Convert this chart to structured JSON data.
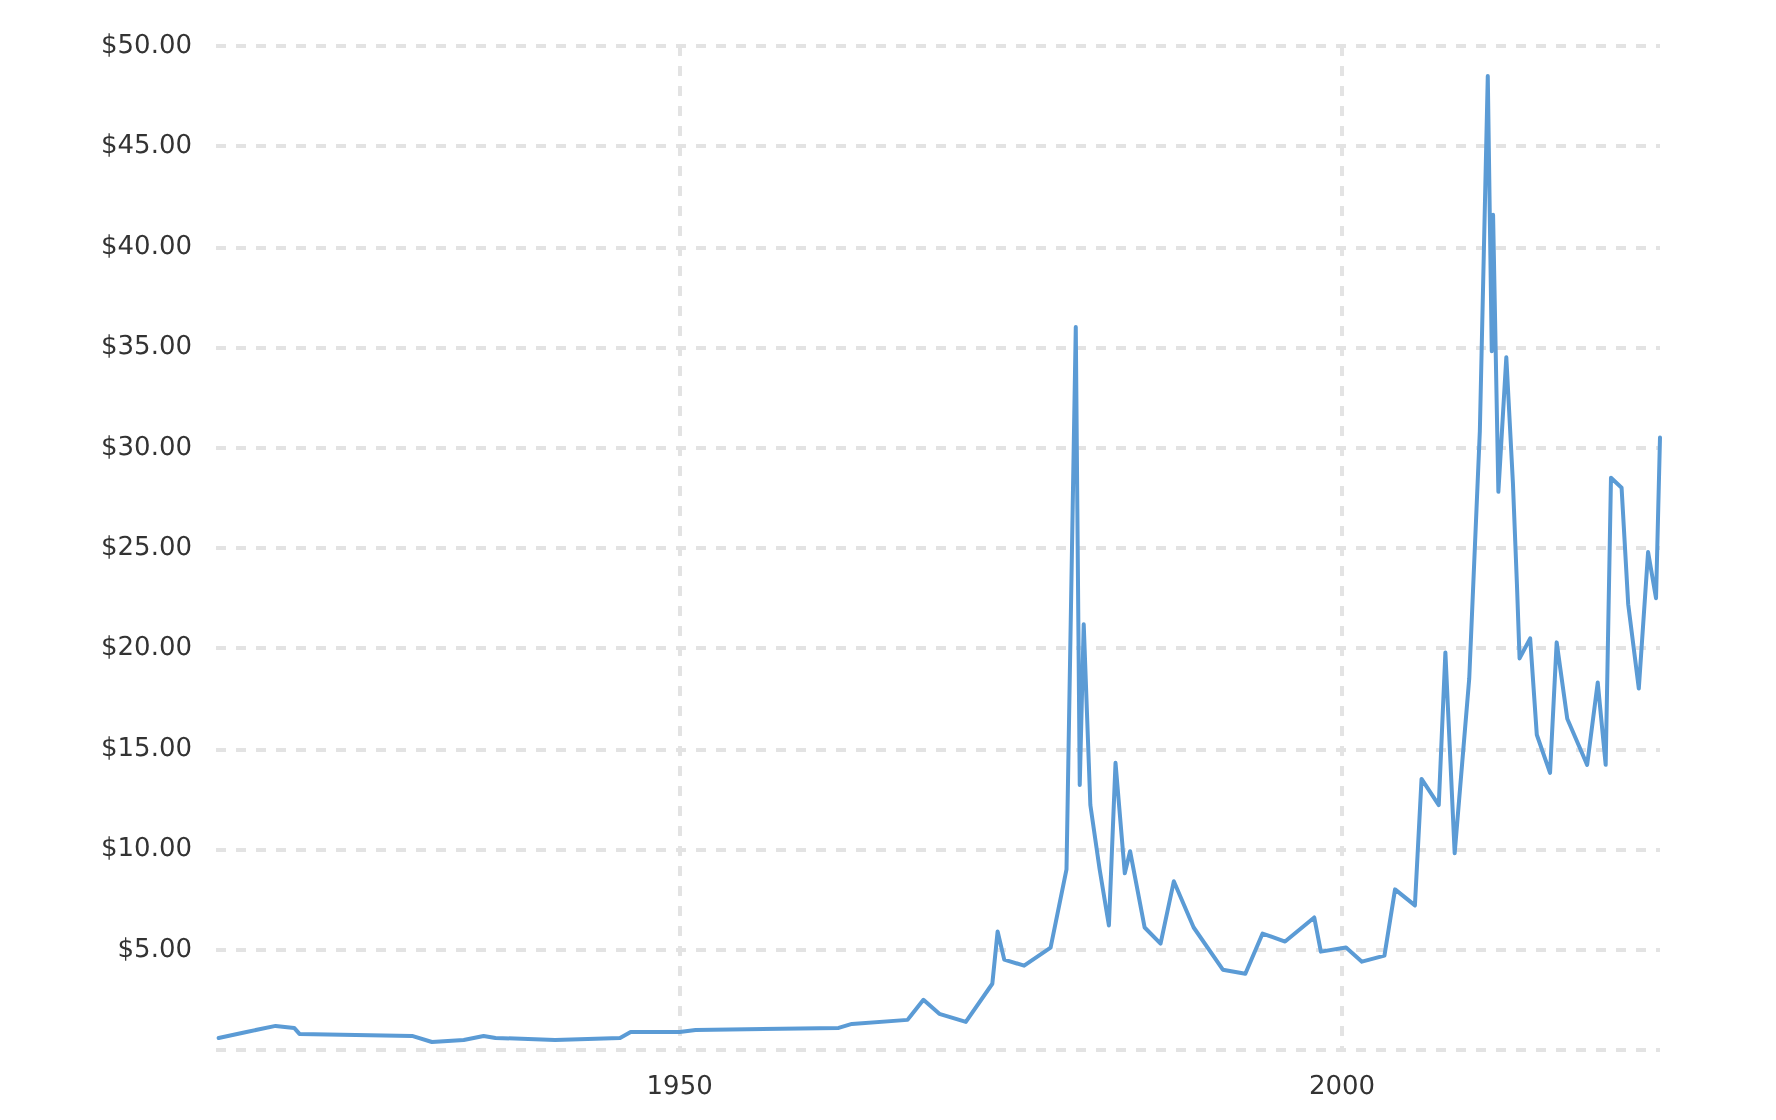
{
  "chart_data": {
    "type": "line",
    "x": [
      1915.2,
      1917.3,
      1919.5,
      1920.9,
      1921.3,
      1929.8,
      1931.3,
      1933.7,
      1935.2,
      1936.1,
      1940.6,
      1945.5,
      1946.3,
      1950,
      1951.2,
      1962,
      1963,
      1967.2,
      1968.4,
      1969.6,
      1971.6,
      1973.6,
      1974,
      1974.5,
      1976,
      1978,
      1979.2,
      1979.9,
      1980.2,
      1980.5,
      1981,
      1981.7,
      1982.4,
      1982.9,
      1983.6,
      1984,
      1985.1,
      1986.3,
      1987.3,
      1988.8,
      1991,
      1992.7,
      1994,
      1995.7,
      1997.9,
      1998.4,
      2000.3,
      2001.5,
      2003.2,
      2004,
      2005.5,
      2006,
      2007.3,
      2007.8,
      2008.5,
      2009.6,
      2010.4,
      2011,
      2011.3,
      2011.4,
      2011.8,
      2012.4,
      2012.9,
      2013.2,
      2013.4,
      2014.2,
      2014.7,
      2015.7,
      2016.2,
      2017,
      2018.5,
      2019.3,
      2019.9,
      2020.3,
      2021.1,
      2021.6,
      2022.4,
      2023.1,
      2023.7,
      2024
    ],
    "series": [
      {
        "color": "#5b9bd5",
        "values": [
          0.6,
          0.9,
          1.2,
          1.1,
          0.8,
          0.7,
          0.4,
          0.5,
          0.7,
          0.6,
          0.5,
          0.6,
          0.9,
          0.9,
          1.0,
          1.1,
          1.3,
          1.5,
          2.5,
          1.8,
          1.4,
          3.3,
          5.9,
          4.5,
          4.2,
          5.1,
          9.0,
          36.0,
          13.2,
          21.2,
          12.2,
          9.0,
          6.2,
          14.3,
          8.8,
          9.9,
          6.1,
          5.3,
          8.4,
          6.1,
          4.0,
          3.8,
          5.8,
          5.4,
          6.6,
          4.9,
          5.1,
          4.4,
          4.7,
          8.0,
          7.2,
          13.5,
          12.2,
          19.8,
          9.8,
          18.5,
          30.8,
          48.5,
          34.8,
          41.6,
          27.8,
          34.5,
          28.2,
          23.2,
          19.5,
          20.5,
          15.7,
          13.8,
          20.3,
          16.5,
          14.2,
          18.3,
          14.2,
          28.5,
          28.0,
          22.2,
          18.0,
          24.8,
          22.5,
          30.5
        ]
      }
    ],
    "xlim": [
      1915,
      2024
    ],
    "xticks": [
      1950,
      2000
    ],
    "ylim": [
      0,
      50
    ],
    "yticks": [
      {
        "value": 0,
        "label": null
      },
      {
        "value": 5,
        "label": "$5.00"
      },
      {
        "value": 10,
        "label": "$10.00"
      },
      {
        "value": 15,
        "label": "$15.00"
      },
      {
        "value": 20,
        "label": "$20.00"
      },
      {
        "value": 25,
        "label": "$25.00"
      },
      {
        "value": 30,
        "label": "$30.00"
      },
      {
        "value": 35,
        "label": "$35.00"
      },
      {
        "value": 40,
        "label": "$40.00"
      },
      {
        "value": 45,
        "label": "$45.00"
      },
      {
        "value": 50,
        "label": "$50.00"
      }
    ],
    "grid": true,
    "marker": "none",
    "line_style": "solid"
  }
}
